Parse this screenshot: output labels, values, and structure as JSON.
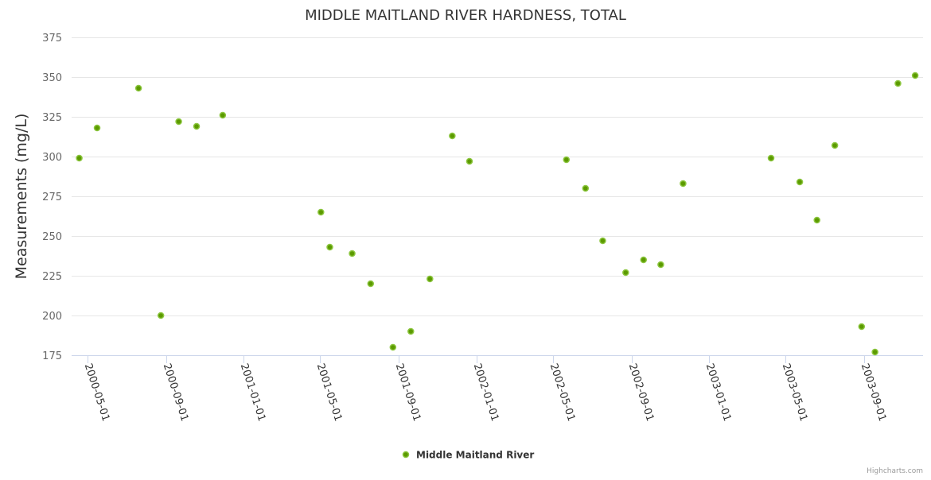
{
  "chart_data": {
    "type": "scatter",
    "title": "MIDDLE MAITLAND RIVER HARDNESS, TOTAL",
    "xlabel": "",
    "ylabel": "Measurements (mg/L)",
    "ylim": [
      175,
      375
    ],
    "yticks": [
      175,
      200,
      225,
      250,
      275,
      300,
      325,
      350,
      375
    ],
    "xticks": [
      "2000-05-01",
      "2000-09-01",
      "2001-01-01",
      "2001-05-01",
      "2001-09-01",
      "2002-01-01",
      "2002-05-01",
      "2002-09-01",
      "2003-01-01",
      "2003-05-01",
      "2003-09-01"
    ],
    "grid": true,
    "legend_placement": "bottom-center",
    "series": [
      {
        "name": "Middle Maitland River",
        "color": "#5c9a00",
        "points": [
          [
            "2000-04-18",
            299
          ],
          [
            "2000-05-16",
            318
          ],
          [
            "2000-07-20",
            343
          ],
          [
            "2000-08-24",
            200
          ],
          [
            "2000-09-21",
            322
          ],
          [
            "2000-10-19",
            319
          ],
          [
            "2000-11-29",
            326
          ],
          [
            "2001-05-02",
            265
          ],
          [
            "2001-05-16",
            243
          ],
          [
            "2001-06-20",
            239
          ],
          [
            "2001-07-19",
            220
          ],
          [
            "2001-08-23",
            180
          ],
          [
            "2001-09-20",
            190
          ],
          [
            "2001-10-20",
            223
          ],
          [
            "2001-11-24",
            313
          ],
          [
            "2001-12-21",
            297
          ],
          [
            "2002-05-22",
            298
          ],
          [
            "2002-06-21",
            280
          ],
          [
            "2002-07-18",
            247
          ],
          [
            "2002-08-23",
            227
          ],
          [
            "2002-09-20",
            235
          ],
          [
            "2002-10-17",
            232
          ],
          [
            "2002-11-21",
            283
          ],
          [
            "2003-04-08",
            299
          ],
          [
            "2003-05-23",
            284
          ],
          [
            "2003-06-19",
            260
          ],
          [
            "2003-07-17",
            307
          ],
          [
            "2003-08-28",
            193
          ],
          [
            "2003-09-18",
            177
          ],
          [
            "2003-10-24",
            346
          ],
          [
            "2003-11-20",
            351
          ]
        ]
      }
    ]
  },
  "credits": "Highcharts.com"
}
